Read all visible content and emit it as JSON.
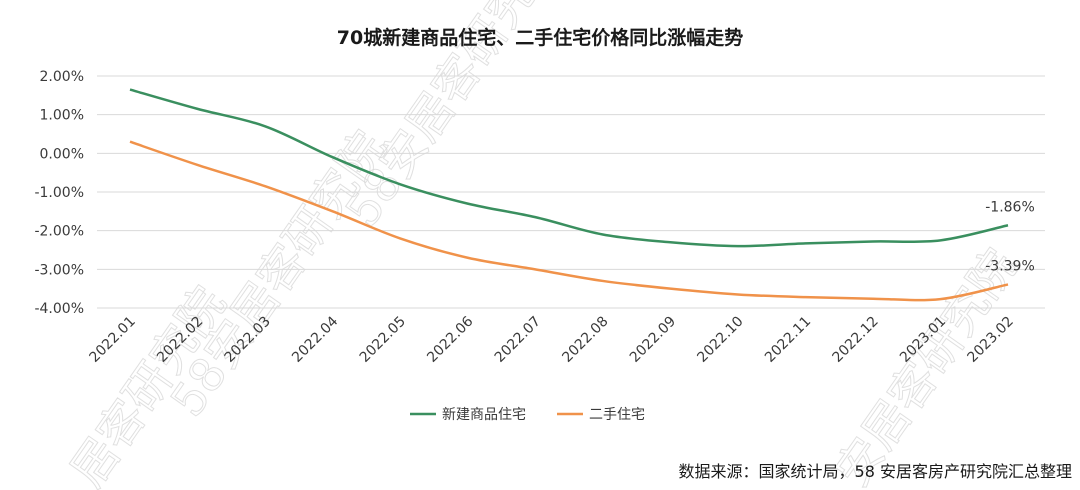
{
  "chart_data": {
    "type": "line",
    "title": "70城新建商品住宅、二手住宅价格同比涨幅走势",
    "categories": [
      "2022.01",
      "2022.02",
      "2022.03",
      "2022.04",
      "2022.05",
      "2022.06",
      "2022.07",
      "2022.08",
      "2022.09",
      "2022.10",
      "2022.11",
      "2022.12",
      "2023.01",
      "2023.02"
    ],
    "y_ticks": [
      "2.00%",
      "1.00%",
      "0.00%",
      "-1.00%",
      "-2.00%",
      "-3.00%",
      "-4.00%"
    ],
    "ylim": [
      -4,
      2
    ],
    "grid": true,
    "legend_position": "bottom",
    "series": [
      {
        "name": "新建商品住宅",
        "color": "#3a8f5f",
        "values": [
          1.65,
          1.15,
          0.7,
          -0.1,
          -0.8,
          -1.3,
          -1.65,
          -2.1,
          -2.3,
          -2.4,
          -2.33,
          -2.28,
          -2.25,
          -1.86
        ],
        "end_label": "-1.86%"
      },
      {
        "name": "二手住宅",
        "color": "#f0924a",
        "values": [
          0.3,
          -0.3,
          -0.85,
          -1.5,
          -2.2,
          -2.7,
          -3.0,
          -3.3,
          -3.5,
          -3.65,
          -3.72,
          -3.76,
          -3.77,
          -3.39
        ],
        "end_label": "-3.39%"
      }
    ]
  },
  "source_note": "数据来源：国家统计局，58 安居客房产研究院汇总整理",
  "watermark": [
    "58安居客研究院",
    "居客研究院",
    "58安居客研究院",
    "安居客研究院"
  ]
}
